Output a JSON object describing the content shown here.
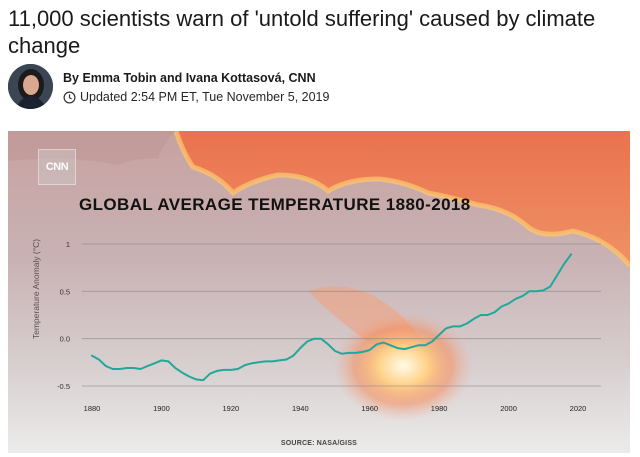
{
  "article": {
    "headline": "11,000 scientists warn of 'untold suffering' caused by climate change",
    "byline": "By Emma Tobin and Ivana Kottasová, CNN",
    "updated": "Updated 2:54 PM ET, Tue November 5, 2019"
  },
  "figure": {
    "logo_text": "CNN",
    "source": "SOURCE: NASA/GISS"
  },
  "colors": {
    "line": "#22a89a",
    "grid": "#8a8a8a",
    "text": "#1a1a1a"
  },
  "chart_data": {
    "type": "line",
    "title": "GLOBAL AVERAGE TEMPERATURE 1880-2018",
    "xlabel": "",
    "ylabel": "Temperature Anomaly (°C)",
    "xlim": [
      1880,
      2020
    ],
    "ylim": [
      -0.5,
      1
    ],
    "x_ticks": [
      1880,
      1900,
      1920,
      1940,
      1960,
      1980,
      2000,
      2020
    ],
    "x_tick_labels": [
      "1880",
      "1900",
      "1920",
      "1940",
      "1960",
      "1980",
      "2000",
      "2020"
    ],
    "y_ticks": [
      1,
      0.5,
      0,
      -0.5
    ],
    "y_tick_labels": [
      "1",
      "0.5",
      "0.0",
      "-0.5"
    ],
    "series": [
      {
        "name": "Global average temperature",
        "x": [
          1880,
          1882,
          1884,
          1886,
          1888,
          1890,
          1892,
          1894,
          1896,
          1898,
          1900,
          1902,
          1904,
          1906,
          1908,
          1910,
          1912,
          1914,
          1916,
          1918,
          1920,
          1922,
          1924,
          1926,
          1928,
          1930,
          1932,
          1934,
          1936,
          1938,
          1940,
          1942,
          1944,
          1946,
          1948,
          1950,
          1952,
          1954,
          1956,
          1958,
          1960,
          1962,
          1964,
          1966,
          1968,
          1970,
          1972,
          1974,
          1976,
          1978,
          1980,
          1982,
          1984,
          1986,
          1988,
          1990,
          1992,
          1994,
          1996,
          1998,
          2000,
          2002,
          2004,
          2006,
          2008,
          2010,
          2012,
          2014,
          2016,
          2018
        ],
        "y": [
          -0.18,
          -0.22,
          -0.29,
          -0.32,
          -0.32,
          -0.31,
          -0.31,
          -0.32,
          -0.29,
          -0.26,
          -0.23,
          -0.24,
          -0.31,
          -0.36,
          -0.4,
          -0.43,
          -0.44,
          -0.37,
          -0.34,
          -0.33,
          -0.33,
          -0.32,
          -0.28,
          -0.26,
          -0.25,
          -0.24,
          -0.24,
          -0.23,
          -0.22,
          -0.18,
          -0.1,
          -0.03,
          0.0,
          0.0,
          -0.06,
          -0.13,
          -0.16,
          -0.15,
          -0.15,
          -0.14,
          -0.12,
          -0.06,
          -0.04,
          -0.07,
          -0.1,
          -0.11,
          -0.09,
          -0.07,
          -0.07,
          -0.03,
          0.04,
          0.11,
          0.13,
          0.13,
          0.16,
          0.21,
          0.25,
          0.25,
          0.28,
          0.34,
          0.37,
          0.42,
          0.45,
          0.5,
          0.5,
          0.51,
          0.55,
          0.67,
          0.79,
          0.89
        ]
      }
    ]
  }
}
